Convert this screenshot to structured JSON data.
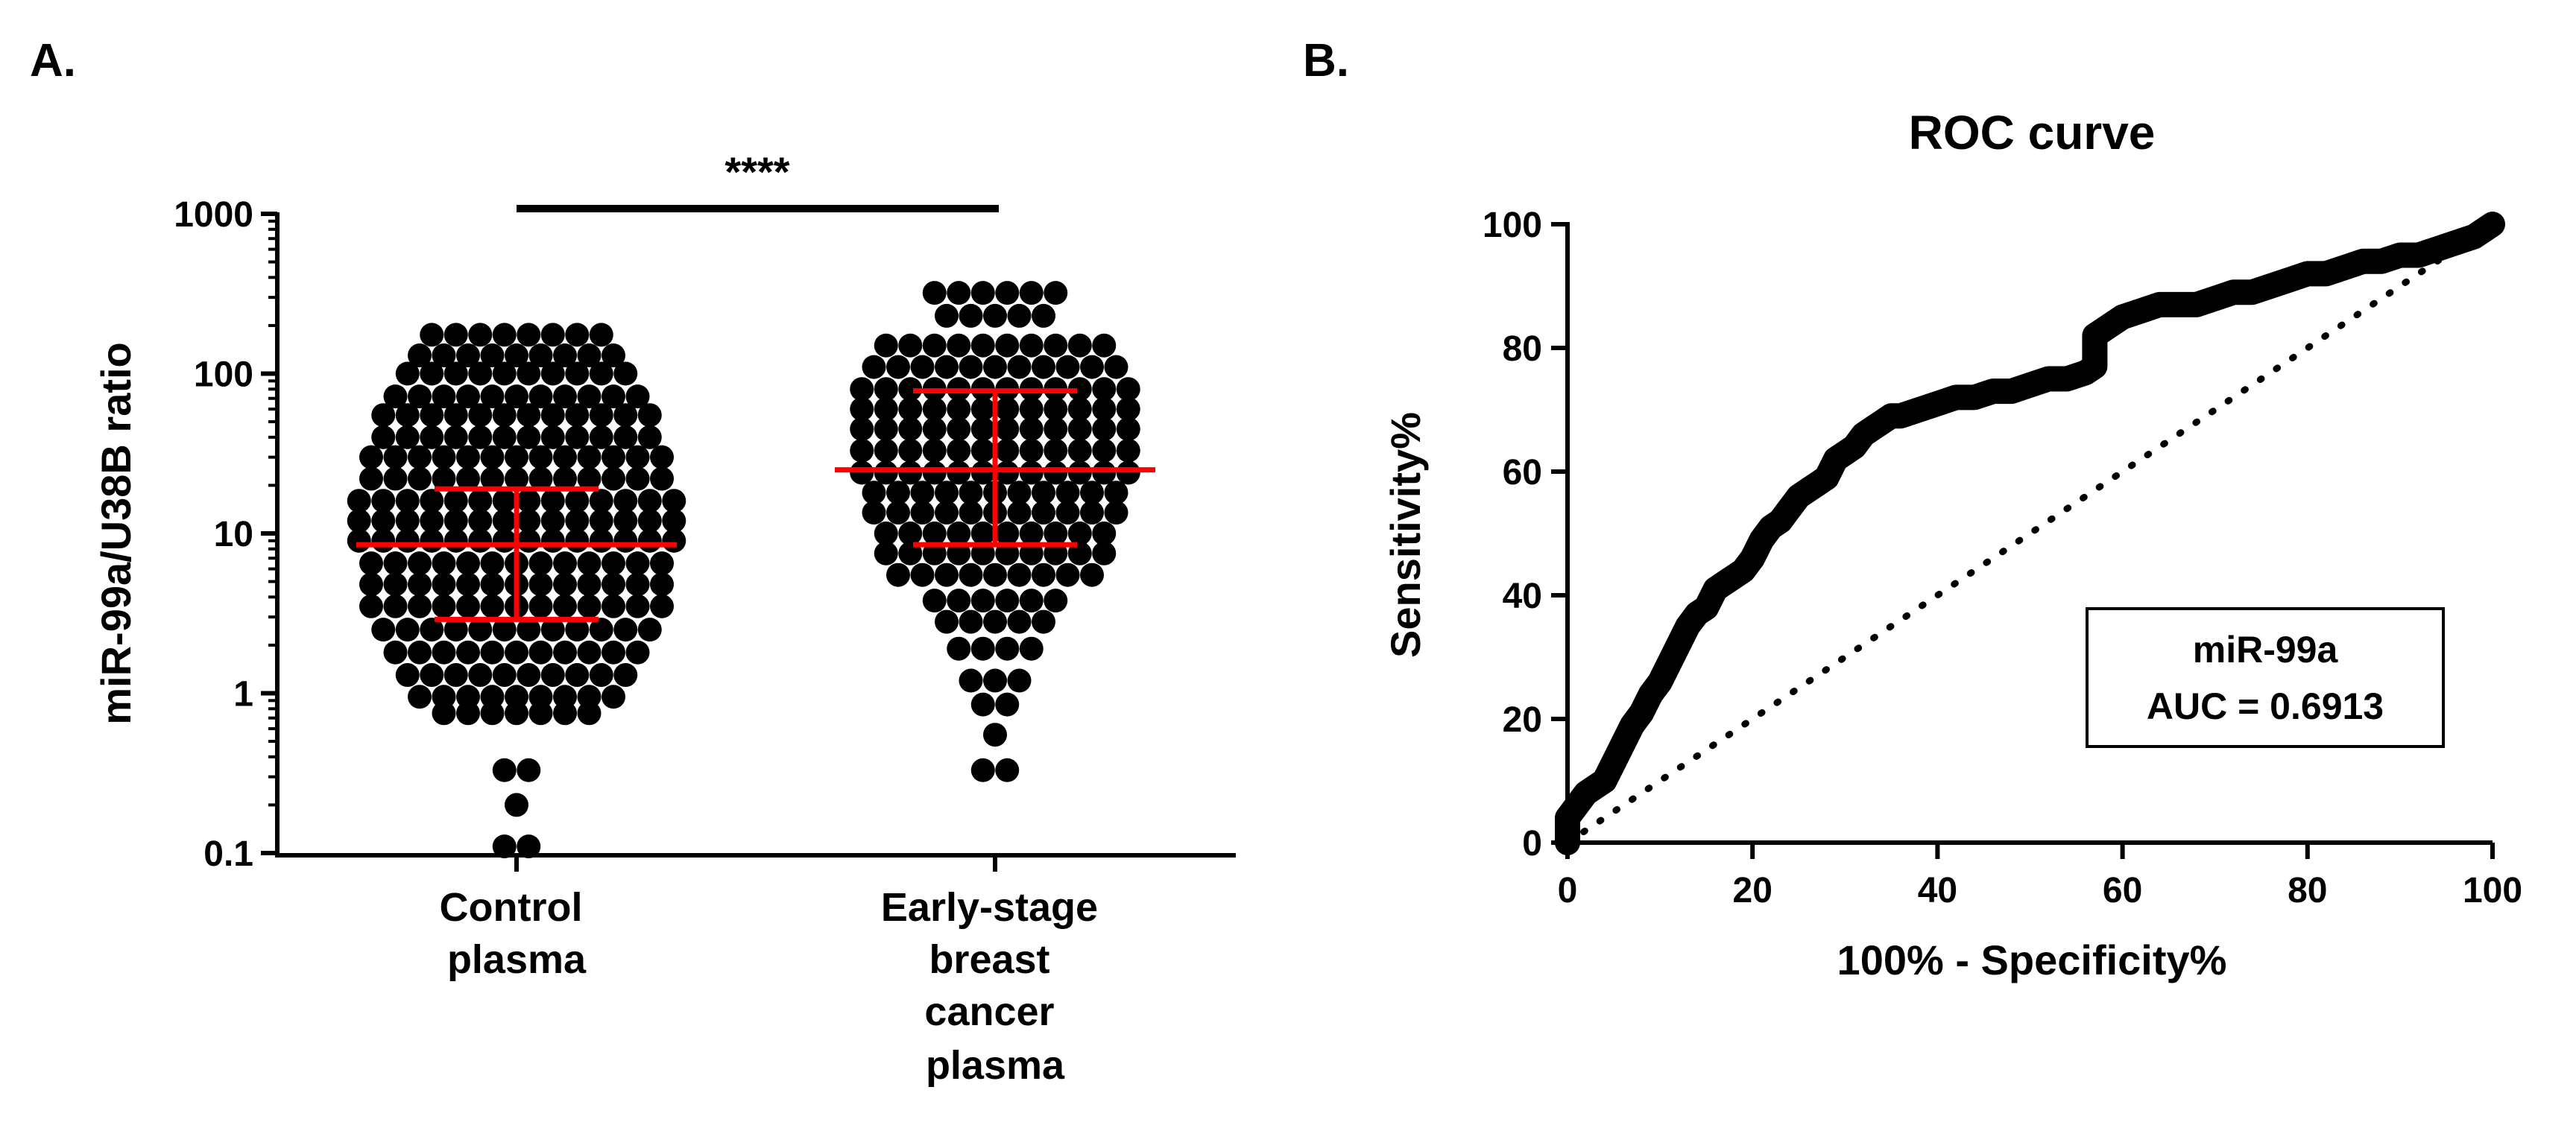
{
  "panels": {
    "a_label": "A.",
    "b_label": "B."
  },
  "chart_data": [
    {
      "type": "scatter",
      "title": "",
      "ylabel": "miR-99a/U38B ratio",
      "xlabel": "",
      "yscale": "log",
      "ylim": [
        0.1,
        1000
      ],
      "yticks": [
        "0.1",
        "1",
        "10",
        "100",
        "1000"
      ],
      "categories": [
        "Control\nplasma",
        "Early-stage\nbreast\ncancer\nplasma"
      ],
      "significance": "****",
      "groups": [
        {
          "name": "Control plasma",
          "mean": 8.5,
          "error_low": 2.9,
          "error_high": 19,
          "color": "#000000",
          "bands": [
            {
              "y": 175,
              "n": 8
            },
            {
              "y": 130,
              "n": 9
            },
            {
              "y": 100,
              "n": 10
            },
            {
              "y": 72,
              "n": 11
            },
            {
              "y": 55,
              "n": 12
            },
            {
              "y": 40,
              "n": 12
            },
            {
              "y": 30,
              "n": 13
            },
            {
              "y": 22,
              "n": 13
            },
            {
              "y": 16,
              "n": 14
            },
            {
              "y": 12,
              "n": 14
            },
            {
              "y": 9,
              "n": 14
            },
            {
              "y": 6.5,
              "n": 13
            },
            {
              "y": 4.8,
              "n": 13
            },
            {
              "y": 3.5,
              "n": 13
            },
            {
              "y": 2.5,
              "n": 12
            },
            {
              "y": 1.8,
              "n": 11
            },
            {
              "y": 1.3,
              "n": 10
            },
            {
              "y": 0.95,
              "n": 9
            },
            {
              "y": 0.75,
              "n": 7
            },
            {
              "y": 0.33,
              "n": 2
            },
            {
              "y": 0.2,
              "n": 1
            },
            {
              "y": 0.11,
              "n": 2
            }
          ]
        },
        {
          "name": "Early-stage breast cancer plasma",
          "mean": 25,
          "error_low": 8.5,
          "error_high": 78,
          "color": "#000000",
          "bands": [
            {
              "y": 320,
              "n": 6
            },
            {
              "y": 230,
              "n": 5
            },
            {
              "y": 150,
              "n": 10
            },
            {
              "y": 110,
              "n": 11
            },
            {
              "y": 80,
              "n": 12
            },
            {
              "y": 60,
              "n": 12
            },
            {
              "y": 45,
              "n": 12
            },
            {
              "y": 33,
              "n": 12
            },
            {
              "y": 24,
              "n": 12
            },
            {
              "y": 18,
              "n": 11
            },
            {
              "y": 13.5,
              "n": 11
            },
            {
              "y": 10,
              "n": 10
            },
            {
              "y": 7.5,
              "n": 10
            },
            {
              "y": 5.5,
              "n": 9
            },
            {
              "y": 3.8,
              "n": 6
            },
            {
              "y": 2.8,
              "n": 5
            },
            {
              "y": 1.9,
              "n": 4
            },
            {
              "y": 1.2,
              "n": 3
            },
            {
              "y": 0.85,
              "n": 2
            },
            {
              "y": 0.55,
              "n": 1
            },
            {
              "y": 0.33,
              "n": 2
            }
          ]
        }
      ],
      "error_bar_color": "#ff0000"
    },
    {
      "type": "line",
      "title": "ROC curve",
      "xlabel": "100% - Specificity%",
      "ylabel": "Sensitivity%",
      "xlim": [
        0,
        100
      ],
      "ylim": [
        0,
        100
      ],
      "xticks": [
        "0",
        "20",
        "40",
        "60",
        "80",
        "100"
      ],
      "yticks": [
        "0",
        "20",
        "40",
        "60",
        "80",
        "100"
      ],
      "legend": {
        "line1": "miR-99a",
        "line2": "AUC = 0.6913"
      },
      "series": [
        {
          "name": "miR-99a",
          "x": [
            0,
            0,
            1,
            2,
            3,
            4,
            5,
            6,
            7,
            8,
            9,
            10,
            11,
            12,
            13,
            14,
            15,
            16,
            17,
            18,
            19,
            20,
            21,
            22,
            23,
            24,
            25,
            26,
            27,
            28,
            29,
            30,
            31,
            32,
            33,
            34,
            35,
            36,
            38,
            40,
            42,
            44,
            46,
            48,
            50,
            52,
            54,
            56,
            57,
            57,
            58,
            60,
            62,
            64,
            66,
            68,
            70,
            72,
            74,
            76,
            78,
            80,
            82,
            84,
            86,
            88,
            90,
            92,
            94,
            96,
            98,
            100
          ],
          "y": [
            0,
            4,
            6,
            8,
            9,
            10,
            13,
            16,
            19,
            21,
            24,
            26,
            29,
            32,
            35,
            37,
            38,
            41,
            42,
            43,
            44,
            46,
            49,
            51,
            52,
            54,
            56,
            57,
            58,
            59,
            62,
            63,
            64,
            66,
            67,
            68,
            69,
            69,
            70,
            71,
            72,
            72,
            73,
            73,
            74,
            75,
            75,
            76,
            77,
            82,
            83,
            85,
            86,
            87,
            87,
            87,
            88,
            89,
            89,
            90,
            91,
            92,
            92,
            93,
            94,
            94,
            95,
            95,
            96,
            97,
            98,
            100
          ]
        },
        {
          "name": "reference",
          "x": [
            0,
            100
          ],
          "y": [
            0,
            100
          ]
        }
      ]
    }
  ]
}
